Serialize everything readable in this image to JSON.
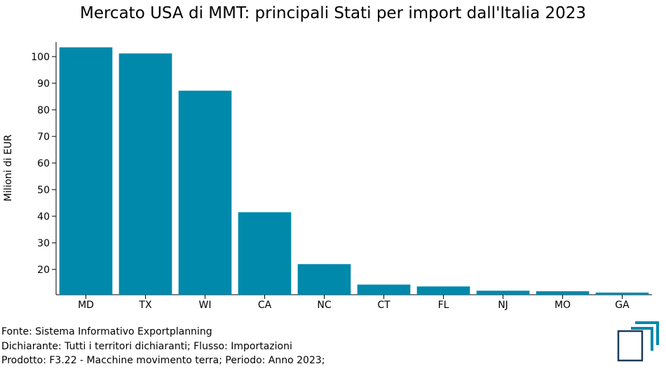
{
  "chart_data": {
    "type": "bar",
    "title": "Mercato USA di MMT: principali Stati per import dall'Italia 2023",
    "ylabel": "Milioni di EUR",
    "xlabel": "",
    "categories": [
      "MD",
      "TX",
      "WI",
      "CA",
      "NC",
      "CT",
      "FL",
      "NJ",
      "MO",
      "GA"
    ],
    "values": [
      103.5,
      101.2,
      87.2,
      41.5,
      22.0,
      14.3,
      13.6,
      12.0,
      11.8,
      11.3
    ],
    "ylim": [
      10.5,
      105.5
    ],
    "yticks": [
      20,
      30,
      40,
      50,
      60,
      70,
      80,
      90,
      100
    ],
    "grid": false,
    "bar_color": "#0089ab"
  },
  "footer": {
    "source": "Fonte: Sistema Informativo Exportplanning",
    "declarant": "Dichiarante: Tutti i territori dichiaranti; Flusso: Importazioni",
    "product": "Prodotto: F3.22 - Macchine movimento terra; Periodo: Anno 2023;"
  },
  "logo": {
    "icon": "exportplanning-logo-icon",
    "colors": [
      "#1a3c5a",
      "#0089ab"
    ]
  }
}
